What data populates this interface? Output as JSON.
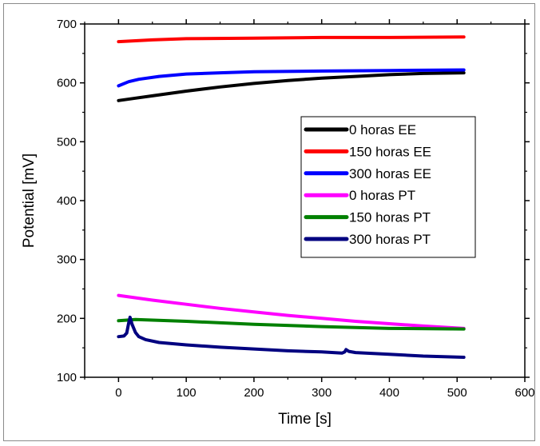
{
  "chart_data": {
    "type": "line",
    "title": "",
    "xlabel": "Time [s]",
    "ylabel": "Potential [mV]",
    "xlim": [
      -50,
      600
    ],
    "ylim": [
      100,
      700
    ],
    "xticks": [
      0,
      100,
      200,
      300,
      400,
      500,
      600
    ],
    "yticks": [
      100,
      200,
      300,
      400,
      500,
      600,
      700
    ],
    "grid": false,
    "legend_position": "right-middle",
    "series": [
      {
        "name": "0 horas EE",
        "color": "#000000",
        "x": [
          0,
          25,
          50,
          100,
          150,
          200,
          250,
          300,
          350,
          400,
          450,
          510
        ],
        "y": [
          570,
          574,
          578,
          586,
          593,
          599,
          604,
          608,
          611,
          614,
          616,
          617
        ]
      },
      {
        "name": "150 horas EE",
        "color": "#ff0000",
        "x": [
          0,
          50,
          100,
          200,
          300,
          400,
          510
        ],
        "y": [
          670,
          673,
          675,
          676,
          677,
          677,
          678
        ]
      },
      {
        "name": "300 horas EE",
        "color": "#0000ff",
        "x": [
          0,
          15,
          30,
          60,
          100,
          150,
          200,
          300,
          400,
          510
        ],
        "y": [
          595,
          602,
          606,
          611,
          615,
          617,
          619,
          620,
          621,
          622
        ]
      },
      {
        "name": "0 horas PT",
        "color": "#ff00ff",
        "x": [
          0,
          50,
          100,
          150,
          200,
          250,
          300,
          350,
          400,
          450,
          510
        ],
        "y": [
          239,
          231,
          224,
          217,
          211,
          205,
          200,
          195,
          191,
          187,
          183
        ]
      },
      {
        "name": "150 horas PT",
        "color": "#008000",
        "x": [
          0,
          25,
          50,
          100,
          200,
          300,
          400,
          510
        ],
        "y": [
          196,
          198,
          197,
          195,
          190,
          186,
          183,
          182
        ]
      },
      {
        "name": "300 horas PT",
        "color": "#000080",
        "x": [
          0,
          8,
          12,
          15,
          17,
          20,
          25,
          30,
          40,
          60,
          100,
          150,
          200,
          250,
          300,
          330,
          334,
          336,
          340,
          350,
          400,
          450,
          510
        ],
        "y": [
          169,
          170,
          175,
          192,
          202,
          190,
          176,
          169,
          164,
          159,
          155,
          151,
          148,
          145,
          143,
          141,
          143,
          147,
          144,
          142,
          139,
          136,
          134
        ]
      }
    ]
  }
}
